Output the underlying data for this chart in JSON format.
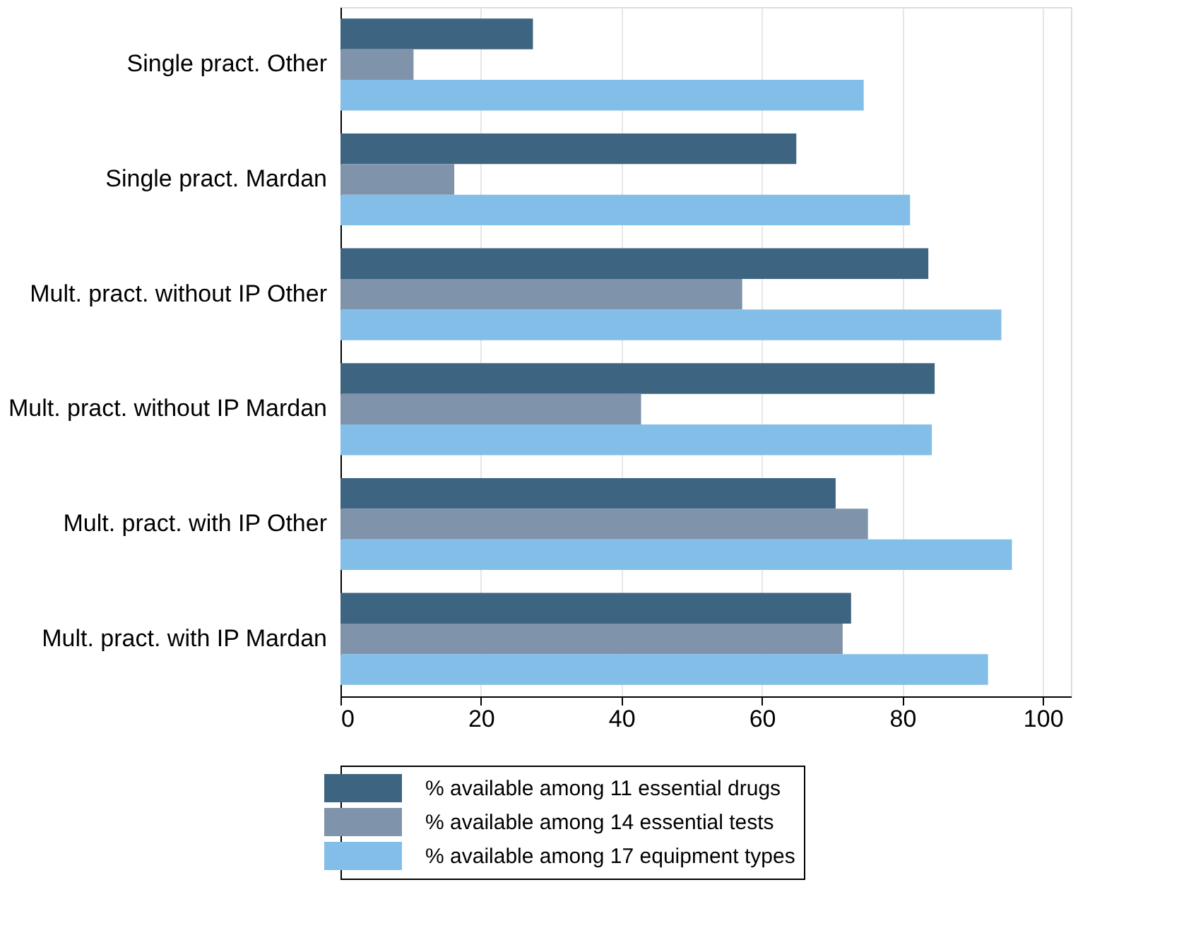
{
  "chart_data": {
    "type": "bar",
    "orientation": "horizontal",
    "categories": [
      "Single pract. Other",
      "Single pract. Mardan",
      "Mult. pract. without IP Other",
      "Mult. pract. without IP Mardan",
      "Mult. pract. with IP Other",
      "Mult. pract. with IP Mardan"
    ],
    "series": [
      {
        "name": "% available among 11 essential drugs",
        "color": "#3d6480",
        "values": [
          27.4,
          64.9,
          83.7,
          84.6,
          70.5,
          72.7
        ]
      },
      {
        "name": "% available among 14 essential tests",
        "color": "#7f93aa",
        "values": [
          10.4,
          16.2,
          57.2,
          42.8,
          75.1,
          71.5
        ]
      },
      {
        "name": "% available among 17 equipment types",
        "color": "#82bee8",
        "values": [
          74.5,
          81.1,
          94.1,
          84.2,
          95.6,
          92.2
        ]
      }
    ],
    "xlim": [
      0,
      104
    ],
    "xticks": [
      0,
      20,
      40,
      60,
      80,
      100
    ],
    "grid": "x",
    "legend": "bottom"
  }
}
